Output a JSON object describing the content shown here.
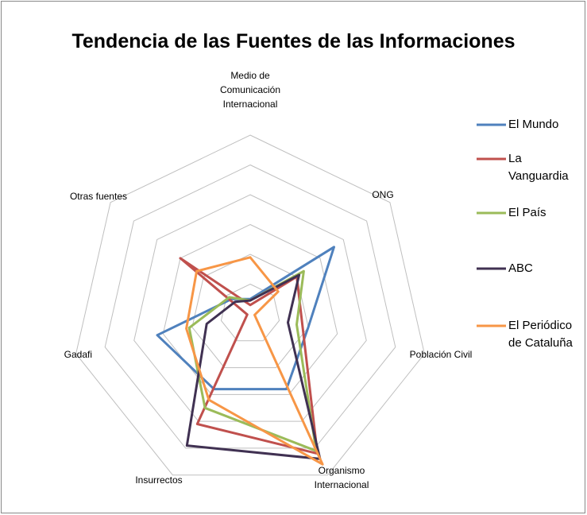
{
  "chart_data": {
    "type": "radar",
    "title": "Tendencia de las Fuentes de las Informaciones",
    "categories": [
      "Medio de Comunicación Internacional",
      "ONG",
      "Población Civil",
      "Organismo Internacional",
      "Insurrectos",
      "Gadafi",
      "Otras fuentes"
    ],
    "series": [
      {
        "name": "El Mundo",
        "color": "#4f81bd",
        "values": [
          0.5,
          3.6,
          2.0,
          2.8,
          2.8,
          3.2,
          0.8
        ]
      },
      {
        "name": "La Vanguardia",
        "color": "#c0504d",
        "values": [
          0.3,
          2.0,
          1.8,
          5.2,
          4.1,
          0.1,
          3.0
        ]
      },
      {
        "name": "El País",
        "color": "#9bbb59",
        "values": [
          0.45,
          2.3,
          1.6,
          5.1,
          3.5,
          2.1,
          0.9
        ]
      },
      {
        "name": "ABC",
        "color": "#403152",
        "values": [
          0.45,
          2.1,
          1.3,
          5.4,
          4.9,
          1.5,
          0.65
        ]
      },
      {
        "name": "El Periódico de Cataluña",
        "color": "#f79646",
        "values": [
          1.9,
          1.2,
          0.15,
          5.6,
          3.2,
          2.2,
          2.3
        ]
      }
    ],
    "ylim": [
      0,
      6
    ],
    "yticks": [
      1,
      2,
      3,
      4,
      5,
      6
    ],
    "grid": true,
    "legend": "right"
  }
}
